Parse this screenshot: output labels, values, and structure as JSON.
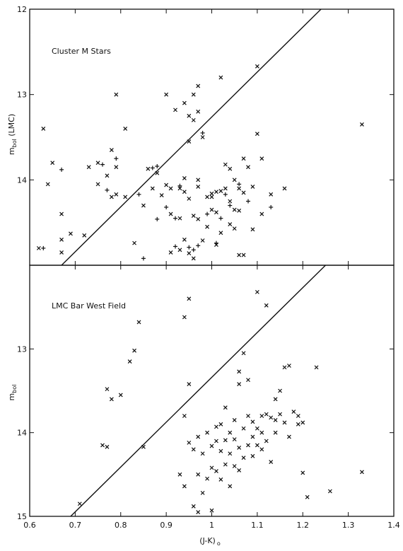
{
  "chart_data": [
    {
      "type": "scatter",
      "panel_label": "Cluster M Stars",
      "ylabel_main": "m",
      "ylabel_sub": "bol",
      "ylabel_suffix": " (LMC)",
      "xlim": [
        0.6,
        1.4
      ],
      "ylim": [
        15.0,
        12.0
      ],
      "y_ticks": [
        12,
        13,
        14
      ],
      "y_tick_labels": [
        "12",
        "13",
        "14"
      ],
      "grid": false,
      "reference_line": [
        [
          0.67,
          15.0
        ],
        [
          1.24,
          12.0
        ]
      ],
      "series": [
        {
          "marker": "x",
          "x": [
            0.62,
            0.63,
            0.64,
            0.65,
            0.67,
            0.67,
            0.67,
            0.69,
            0.72,
            0.73,
            0.75,
            0.75,
            0.77,
            0.78,
            0.78,
            0.79,
            0.79,
            0.79,
            0.81,
            0.81,
            0.83,
            0.85,
            0.86,
            0.87,
            0.88,
            0.89,
            0.9,
            0.9,
            0.91,
            0.91,
            0.91,
            0.92,
            0.93,
            0.93,
            0.93,
            0.94,
            0.94,
            0.94,
            0.94,
            0.95,
            0.95,
            0.95,
            0.95,
            0.96,
            0.96,
            0.96,
            0.96,
            0.97,
            0.97,
            0.97,
            0.97,
            0.97,
            0.98,
            0.98,
            0.99,
            0.99,
            1.0,
            1.0,
            1.0,
            1.01,
            1.01,
            1.01,
            1.02,
            1.02,
            1.02,
            1.03,
            1.03,
            1.04,
            1.04,
            1.04,
            1.05,
            1.05,
            1.05,
            1.06,
            1.06,
            1.06,
            1.07,
            1.07,
            1.07,
            1.08,
            1.09,
            1.09,
            1.1,
            1.1,
            1.11,
            1.11,
            1.13,
            1.16,
            1.33
          ],
          "y": [
            14.8,
            13.4,
            14.05,
            13.8,
            14.4,
            14.7,
            14.85,
            14.63,
            14.65,
            13.85,
            13.8,
            14.05,
            13.95,
            13.65,
            14.2,
            13.85,
            14.17,
            13.0,
            14.2,
            13.4,
            14.74,
            14.3,
            13.87,
            14.1,
            13.92,
            14.18,
            13.0,
            14.06,
            14.1,
            14.85,
            14.4,
            13.18,
            14.1,
            14.82,
            14.45,
            13.1,
            13.98,
            14.14,
            14.7,
            13.25,
            13.55,
            14.22,
            14.86,
            13.0,
            13.3,
            14.42,
            14.92,
            12.9,
            13.2,
            14.0,
            14.46,
            14.08,
            13.5,
            14.71,
            14.2,
            14.55,
            14.35,
            14.2,
            14.16,
            14.38,
            14.14,
            14.76,
            12.8,
            14.13,
            14.62,
            13.82,
            14.1,
            14.25,
            14.52,
            13.87,
            14.0,
            14.35,
            14.57,
            14.1,
            14.36,
            14.88,
            13.75,
            14.15,
            14.88,
            13.85,
            14.08,
            14.58,
            13.46,
            12.67,
            14.4,
            13.75,
            14.17,
            14.1,
            13.35
          ]
        },
        {
          "marker": "+",
          "x": [
            0.63,
            0.67,
            0.76,
            0.77,
            0.79,
            0.84,
            0.85,
            0.87,
            0.88,
            0.88,
            0.9,
            0.92,
            0.92,
            0.93,
            0.95,
            0.96,
            0.97,
            0.98,
            0.99,
            1.01,
            1.02,
            1.03,
            1.04,
            1.06,
            1.08,
            1.13
          ],
          "y": [
            14.8,
            13.88,
            13.82,
            14.12,
            13.75,
            14.17,
            14.92,
            13.86,
            13.84,
            14.46,
            14.32,
            14.45,
            14.78,
            14.07,
            14.79,
            14.82,
            14.77,
            13.45,
            14.4,
            14.74,
            14.45,
            14.17,
            14.3,
            14.05,
            14.25,
            14.32
          ]
        }
      ]
    },
    {
      "type": "scatter",
      "panel_label": "LMC Bar West Field",
      "ylabel_main": "m",
      "ylabel_sub": "bol",
      "xlabel_main": "(J-K)",
      "xlabel_sub": "o",
      "xlim": [
        0.6,
        1.4
      ],
      "ylim": [
        15.0,
        12.0
      ],
      "x_ticks": [
        0.6,
        0.7,
        0.8,
        0.9,
        1.0,
        1.1,
        1.2,
        1.3,
        1.4
      ],
      "x_tick_labels": [
        "0.6",
        "0.7",
        "0.8",
        "0.9",
        "1",
        "1.1",
        "1.2",
        "1.3",
        "1.4"
      ],
      "y_ticks": [
        13,
        14,
        15
      ],
      "y_tick_labels": [
        "13",
        "14",
        "15"
      ],
      "grid": false,
      "reference_line": [
        [
          0.69,
          15.0
        ],
        [
          1.25,
          12.0
        ]
      ],
      "series": [
        {
          "marker": "x",
          "x": [
            0.71,
            0.76,
            0.77,
            0.77,
            0.78,
            0.8,
            0.82,
            0.83,
            0.84,
            0.85,
            0.93,
            0.94,
            0.94,
            0.94,
            0.95,
            0.95,
            0.95,
            0.96,
            0.96,
            0.97,
            0.97,
            0.97,
            0.98,
            0.98,
            0.99,
            0.99,
            1.0,
            1.0,
            1.0,
            1.01,
            1.01,
            1.01,
            1.02,
            1.02,
            1.02,
            1.03,
            1.03,
            1.03,
            1.04,
            1.04,
            1.04,
            1.05,
            1.05,
            1.05,
            1.06,
            1.06,
            1.06,
            1.06,
            1.07,
            1.07,
            1.07,
            1.08,
            1.08,
            1.08,
            1.09,
            1.09,
            1.09,
            1.1,
            1.1,
            1.1,
            1.11,
            1.11,
            1.11,
            1.12,
            1.12,
            1.12,
            1.13,
            1.13,
            1.14,
            1.14,
            1.14,
            1.15,
            1.15,
            1.16,
            1.16,
            1.17,
            1.17,
            1.18,
            1.19,
            1.19,
            1.2,
            1.2,
            1.21,
            1.23,
            1.26,
            1.33
          ],
          "y": [
            14.85,
            14.15,
            13.48,
            14.17,
            13.6,
            13.55,
            13.15,
            13.02,
            12.68,
            14.17,
            14.5,
            12.62,
            13.8,
            14.64,
            12.4,
            13.42,
            14.12,
            14.2,
            14.88,
            14.05,
            14.5,
            14.95,
            14.25,
            14.72,
            14.0,
            14.55,
            14.42,
            14.16,
            14.93,
            13.93,
            14.1,
            14.46,
            13.9,
            14.22,
            14.56,
            13.7,
            14.09,
            14.38,
            14.0,
            14.25,
            14.64,
            13.85,
            14.08,
            14.4,
            13.42,
            13.27,
            14.18,
            14.45,
            13.05,
            13.95,
            14.3,
            13.37,
            13.8,
            14.15,
            13.87,
            14.05,
            14.28,
            12.32,
            13.95,
            14.15,
            13.8,
            14.0,
            14.2,
            12.48,
            13.78,
            14.1,
            14.35,
            13.82,
            13.6,
            13.85,
            14.0,
            13.5,
            13.78,
            13.22,
            13.88,
            14.05,
            13.2,
            13.75,
            13.8,
            13.9,
            14.48,
            13.88,
            14.77,
            13.22,
            14.7,
            14.47
          ]
        }
      ]
    }
  ]
}
